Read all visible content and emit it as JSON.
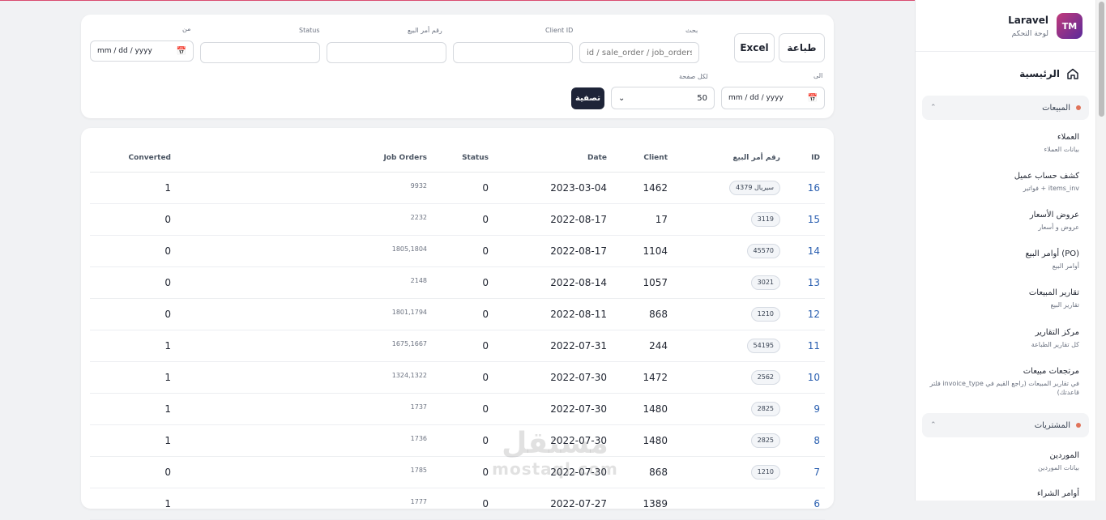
{
  "brand": {
    "name": "Laravel",
    "subtitle": "لوحة التحكم",
    "logo_text": "TM"
  },
  "nav": {
    "home_label": "الرئيسية",
    "groups": [
      {
        "label": "المبيعات",
        "items": [
          {
            "title": "العملاء",
            "subtitle": "بيانات العملاء"
          },
          {
            "title": "كشف حساب عميل",
            "subtitle": "فواتير + items_inv"
          },
          {
            "title": "عروض الأسعار",
            "subtitle": "عروض و أسعار"
          },
          {
            "title": "أوامر البيع (PO)",
            "subtitle": "أوامر البيع"
          },
          {
            "title": "تقارير المبيعات",
            "subtitle": "تقارير البيع"
          },
          {
            "title": "مركز التقارير",
            "subtitle": "كل تقارير الطباعة"
          },
          {
            "title": "مرتجعات مبيعات",
            "subtitle": "فلتر invoice_type في تقارير المبيعات (راجع القيم في قاعدتك)"
          }
        ]
      },
      {
        "label": "المشتريات",
        "items": [
          {
            "title": "الموردين",
            "subtitle": "بيانات الموردين"
          },
          {
            "title": "أوامر الشراء",
            "subtitle": ""
          }
        ]
      }
    ]
  },
  "toolbar": {
    "print_label": "طباعة",
    "excel_label": "Excel",
    "filter_label": "تصفية"
  },
  "filters": {
    "search_label": "بحث",
    "search_placeholder": "id / sale_order / job_orders",
    "client_label": "Client ID",
    "so_label": "رقم أمر البيع",
    "status_label": "Status",
    "from_label": "من",
    "to_label": "الى",
    "per_page_label": "لكل صفحة",
    "per_page_value": "50",
    "date_placeholder": "mm / dd / yyyy"
  },
  "table": {
    "headers": {
      "id": "ID",
      "sale_order": "رقم أمر البيع",
      "client": "Client",
      "date": "Date",
      "status": "Status",
      "job_orders": "Job Orders",
      "converted": "Converted"
    },
    "rows": [
      {
        "id": "16",
        "sale_order": "4379 سيريال",
        "client": "1462",
        "date": "2023-03-04",
        "status": "0",
        "job_orders": "9932",
        "converted": "1"
      },
      {
        "id": "15",
        "sale_order": "3119",
        "client": "17",
        "date": "2022-08-17",
        "status": "0",
        "job_orders": "2232",
        "converted": "0"
      },
      {
        "id": "14",
        "sale_order": "45570",
        "client": "1104",
        "date": "2022-08-17",
        "status": "0",
        "job_orders": "1805,1804",
        "converted": "0"
      },
      {
        "id": "13",
        "sale_order": "3021",
        "client": "1057",
        "date": "2022-08-14",
        "status": "0",
        "job_orders": "2148",
        "converted": "0"
      },
      {
        "id": "12",
        "sale_order": "1210",
        "client": "868",
        "date": "2022-08-11",
        "status": "0",
        "job_orders": "1801,1794",
        "converted": "0"
      },
      {
        "id": "11",
        "sale_order": "54195",
        "client": "244",
        "date": "2022-07-31",
        "status": "0",
        "job_orders": "1675,1667",
        "converted": "1"
      },
      {
        "id": "10",
        "sale_order": "2562",
        "client": "1472",
        "date": "2022-07-30",
        "status": "0",
        "job_orders": "1324,1322",
        "converted": "1"
      },
      {
        "id": "9",
        "sale_order": "2825",
        "client": "1480",
        "date": "2022-07-30",
        "status": "0",
        "job_orders": "1737",
        "converted": "1"
      },
      {
        "id": "8",
        "sale_order": "2825",
        "client": "1480",
        "date": "2022-07-30",
        "status": "0",
        "job_orders": "1736",
        "converted": "1"
      },
      {
        "id": "7",
        "sale_order": "1210",
        "client": "868",
        "date": "2022-07-30",
        "status": "0",
        "job_orders": "1785",
        "converted": "0"
      },
      {
        "id": "6",
        "sale_order": "",
        "client": "1389",
        "date": "2022-07-27",
        "status": "0",
        "job_orders": "1777",
        "converted": "1"
      }
    ]
  },
  "watermark": {
    "arabic": "مستقل",
    "latin": "mostaql.com"
  }
}
